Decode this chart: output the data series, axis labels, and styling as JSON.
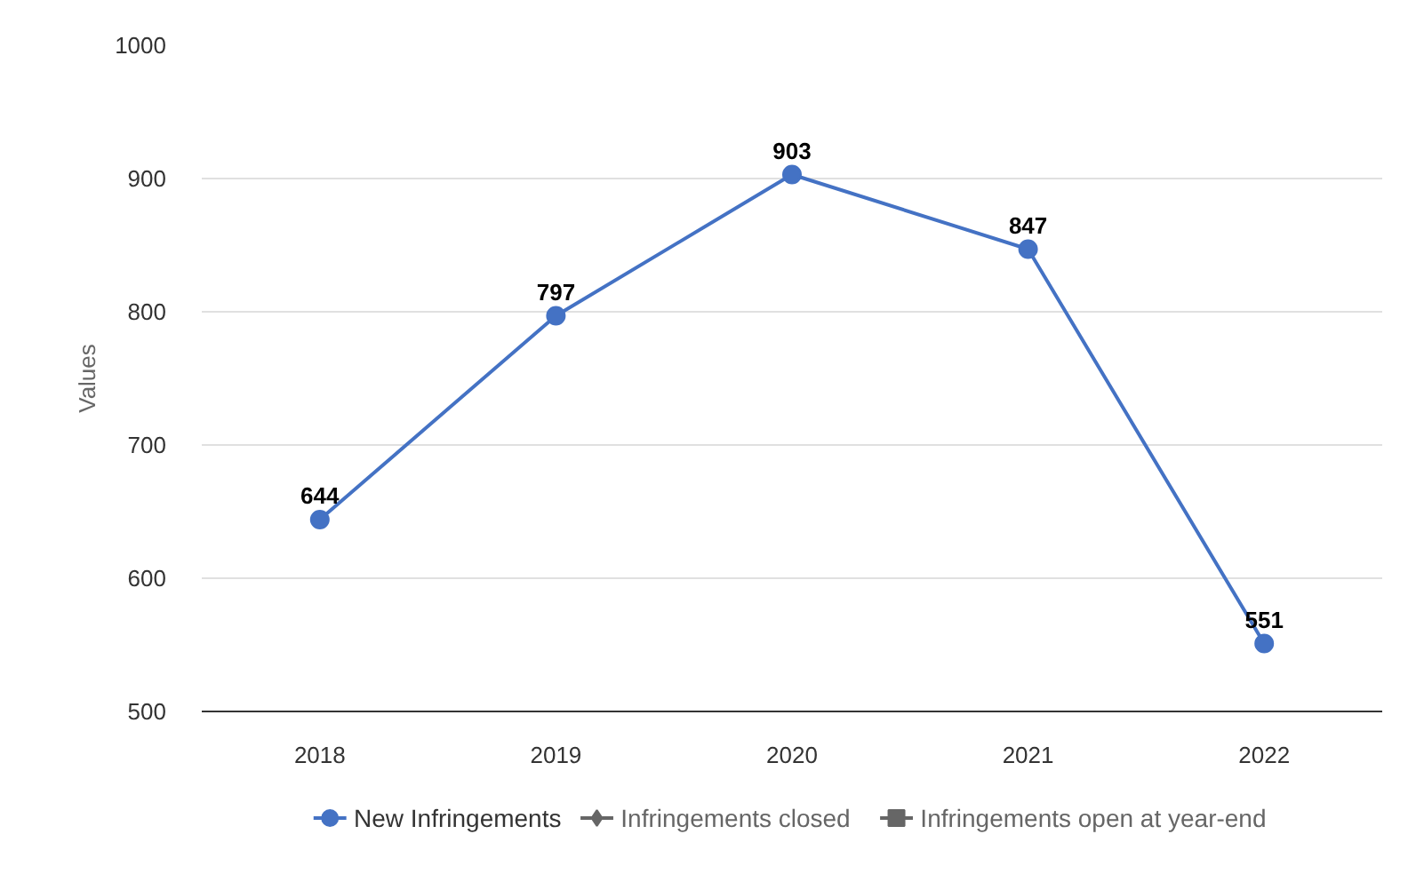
{
  "chart_data": {
    "type": "line",
    "ylabel": "Values",
    "categories": [
      "2018",
      "2019",
      "2020",
      "2021",
      "2022"
    ],
    "series": [
      {
        "name": "New Infringements",
        "color": "#4472c4",
        "marker": "circle",
        "values": [
          644,
          797,
          903,
          847,
          551
        ]
      },
      {
        "name": "Infringements closed",
        "color": "#666666",
        "marker": "diamond",
        "values": [
          null,
          null,
          null,
          null,
          null
        ]
      },
      {
        "name": "Infringements open at year-end",
        "color": "#666666",
        "marker": "square",
        "values": [
          null,
          null,
          null,
          null,
          null
        ]
      }
    ],
    "ylim": [
      500,
      1000
    ],
    "yticks": [
      500,
      600,
      700,
      800,
      900,
      1000
    ],
    "grid": "y",
    "legend": "bottom",
    "data_labels": true,
    "line_style": "solid"
  }
}
